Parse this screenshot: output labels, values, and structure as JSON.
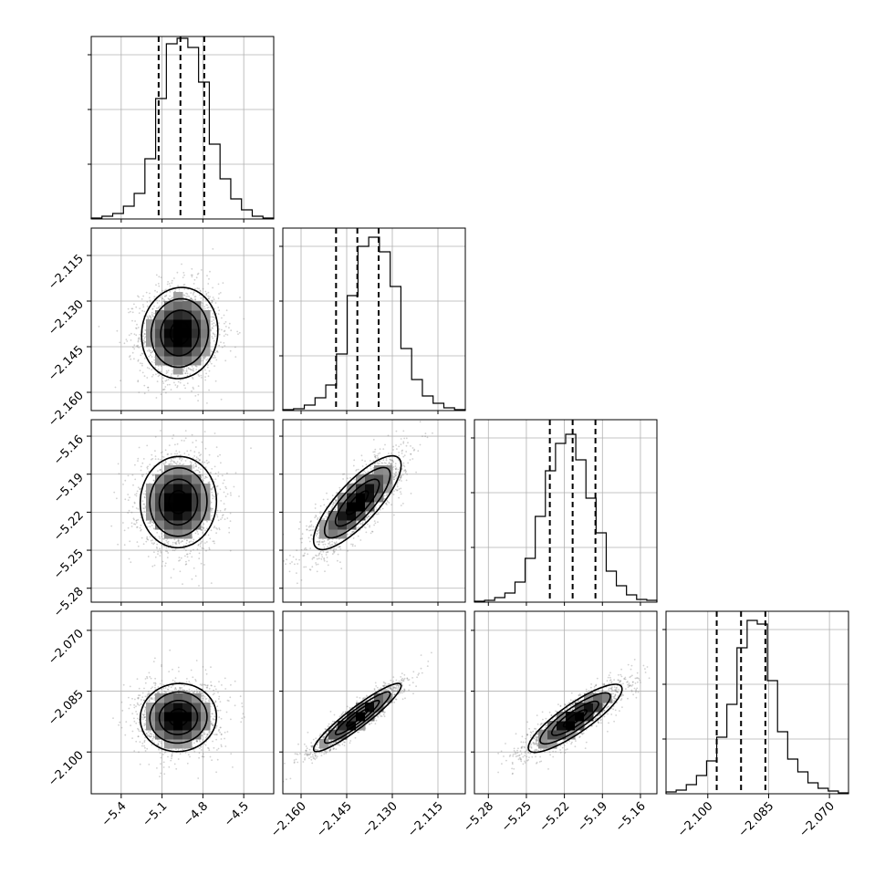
{
  "chart_data": {
    "type": "corner",
    "grid": true,
    "parameters": [
      {
        "ticks": [
          "−5.4",
          "−5.1",
          "−4.8",
          "−4.5"
        ],
        "tick_values": [
          -5.4,
          -5.1,
          -4.8,
          -4.5
        ],
        "range": [
          -5.62,
          -4.28
        ],
        "quantiles": [
          -5.125,
          -4.965,
          -4.79
        ],
        "histogram": [
          0.5,
          1.5,
          3,
          7,
          14,
          33,
          66,
          96,
          99,
          94,
          75,
          41,
          22,
          11,
          5,
          1.5,
          0.5
        ],
        "hist_max": 100
      },
      {
        "ticks": [
          "−2.160",
          "−2.145",
          "−2.130",
          "−2.115"
        ],
        "tick_values": [
          -2.16,
          -2.145,
          -2.13,
          -2.115
        ],
        "range": [
          -2.166,
          -2.106
        ],
        "quantiles": [
          -2.1485,
          -2.1415,
          -2.1345
        ],
        "histogram": [
          0.5,
          1,
          3,
          7,
          14,
          31,
          63,
          90,
          95,
          87,
          68,
          34,
          17,
          8,
          4,
          1.5,
          0.5
        ],
        "hist_max": 100
      },
      {
        "ticks": [
          "−5.28",
          "−5.25",
          "−5.22",
          "−5.19",
          "−5.16"
        ],
        "tick_values": [
          -5.28,
          -5.25,
          -5.22,
          -5.19,
          -5.16
        ],
        "range": [
          -5.291,
          -5.147
        ],
        "quantiles": [
          -5.2315,
          -5.2135,
          -5.1955
        ],
        "histogram": [
          0.5,
          1,
          2.5,
          5,
          11,
          24,
          47,
          72,
          87,
          92,
          78,
          57,
          38,
          17,
          9,
          4,
          1.5,
          1
        ],
        "hist_max": 100
      },
      {
        "ticks": [
          "−2.100",
          "−2.085",
          "−2.070"
        ],
        "tick_values": [
          -2.1,
          -2.085,
          -2.07
        ],
        "range": [
          -2.1103,
          -2.0653
        ],
        "quantiles": [
          -2.0978,
          -2.0918,
          -2.0858
        ],
        "histogram": [
          1,
          2,
          5,
          10,
          18,
          31,
          49,
          80,
          95,
          93,
          62,
          34,
          19,
          12,
          6,
          3,
          1.5,
          0.5
        ],
        "hist_max": 100
      }
    ],
    "panels_2d": [
      {
        "row": 1,
        "col": 0,
        "center": [
          -4.97,
          -2.1405
        ],
        "sigma": [
          0.14,
          0.0075
        ],
        "rho": 0.05
      },
      {
        "row": 2,
        "col": 0,
        "center": [
          -4.98,
          -5.212
        ],
        "sigma": [
          0.14,
          0.018
        ],
        "rho": 0.02
      },
      {
        "row": 2,
        "col": 1,
        "center": [
          -2.1415,
          -5.2125
        ],
        "sigma": [
          0.0072,
          0.0185
        ],
        "rho": 0.8
      },
      {
        "row": 3,
        "col": 0,
        "center": [
          -4.98,
          -2.0915
        ],
        "sigma": [
          0.14,
          0.0042
        ],
        "rho": 0.03
      },
      {
        "row": 3,
        "col": 1,
        "center": [
          -2.1415,
          -2.0915
        ],
        "sigma": [
          0.0072,
          0.0042
        ],
        "rho": 0.93
      },
      {
        "row": 3,
        "col": 2,
        "center": [
          -5.2115,
          -2.0917
        ],
        "sigma": [
          0.0185,
          0.0042
        ],
        "rho": 0.86
      }
    ]
  }
}
